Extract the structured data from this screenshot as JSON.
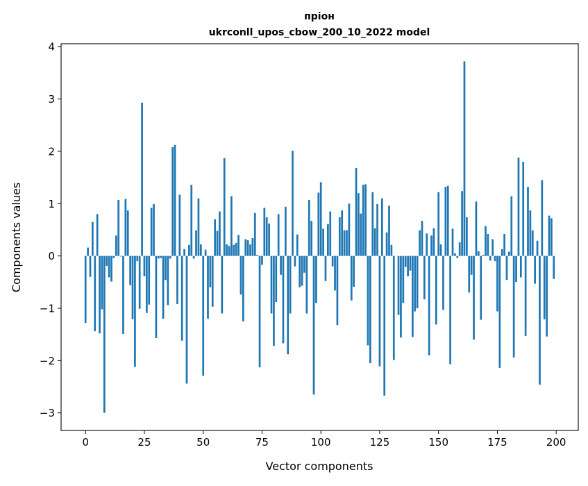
{
  "chart_data": {
    "type": "bar",
    "title_line1": "пріон",
    "title_line2": "ukrconll_upos_cbow_200_10_2022 model",
    "xlabel": "Vector components",
    "ylabel": "Components values",
    "xlim": [
      -10.39,
      209.39
    ],
    "ylim": [
      -3.336,
      4.056
    ],
    "xticks": [
      0,
      25,
      50,
      75,
      100,
      125,
      150,
      175,
      200
    ],
    "yticks": [
      -3,
      -2,
      -1,
      0,
      1,
      2,
      3,
      4
    ],
    "ytick_labels": [
      "−3",
      "−2",
      "−1",
      "0",
      "1",
      "2",
      "3",
      "4"
    ],
    "bar_color": "#1f77b4",
    "grid": false,
    "values": [
      -1.28,
      0.16,
      -0.4,
      0.65,
      -1.44,
      0.8,
      -1.48,
      -1.02,
      -3.0,
      -0.19,
      -0.41,
      -0.49,
      -0.04,
      0.39,
      1.07,
      -0.01,
      -1.49,
      1.09,
      0.87,
      -0.56,
      -1.21,
      -2.12,
      -0.1,
      -1.01,
      2.93,
      -0.39,
      -1.09,
      -0.93,
      0.92,
      0.99,
      -1.57,
      -0.05,
      -0.04,
      -1.2,
      -0.46,
      -0.94,
      -0.05,
      2.08,
      2.12,
      -0.92,
      1.17,
      -1.62,
      0.13,
      -2.44,
      0.21,
      1.36,
      -0.05,
      0.49,
      1.1,
      0.22,
      -2.29,
      0.12,
      -1.2,
      -0.6,
      -0.97,
      0.7,
      0.48,
      0.85,
      -1.1,
      1.87,
      0.22,
      0.19,
      1.14,
      0.21,
      0.25,
      0.4,
      -0.74,
      -1.25,
      0.32,
      0.3,
      0.22,
      0.34,
      0.82,
      0.02,
      -2.13,
      -0.17,
      0.92,
      0.74,
      0.62,
      -1.1,
      -1.72,
      -0.88,
      0.8,
      -0.36,
      -1.67,
      0.94,
      -1.88,
      -1.1,
      2.01,
      -0.2,
      0.41,
      -0.6,
      -0.57,
      -0.32,
      -1.1,
      1.07,
      0.67,
      -2.65,
      -0.9,
      1.21,
      1.41,
      0.52,
      -0.48,
      0.61,
      0.85,
      -0.2,
      -0.66,
      -1.32,
      0.74,
      0.87,
      0.49,
      0.49,
      1.0,
      -0.85,
      -0.59,
      1.68,
      1.2,
      0.81,
      1.36,
      1.37,
      -1.71,
      -2.05,
      1.22,
      0.53,
      0.99,
      -2.11,
      1.1,
      -2.67,
      0.45,
      0.96,
      0.21,
      -1.99,
      0.0,
      -1.13,
      -1.56,
      -0.9,
      -0.21,
      -0.39,
      -0.28,
      -1.55,
      -1.06,
      -1.0,
      0.49,
      0.67,
      -0.83,
      0.43,
      -1.9,
      0.39,
      0.53,
      -1.31,
      1.22,
      0.22,
      -1.03,
      1.32,
      1.34,
      -2.07,
      0.52,
      0.05,
      -0.04,
      0.26,
      1.24,
      3.72,
      0.74,
      -0.7,
      -0.36,
      -1.6,
      1.04,
      0.09,
      -1.22,
      0.02,
      0.57,
      0.42,
      -0.09,
      0.32,
      -0.1,
      -1.06,
      -2.14,
      0.13,
      0.42,
      -0.46,
      0.08,
      1.14,
      -1.94,
      -0.5,
      1.88,
      -0.41,
      1.8,
      -1.53,
      1.32,
      0.87,
      0.49,
      -0.53,
      0.29,
      -2.46,
      1.45,
      -1.21,
      -1.54,
      0.77,
      0.72,
      -0.44
    ]
  }
}
